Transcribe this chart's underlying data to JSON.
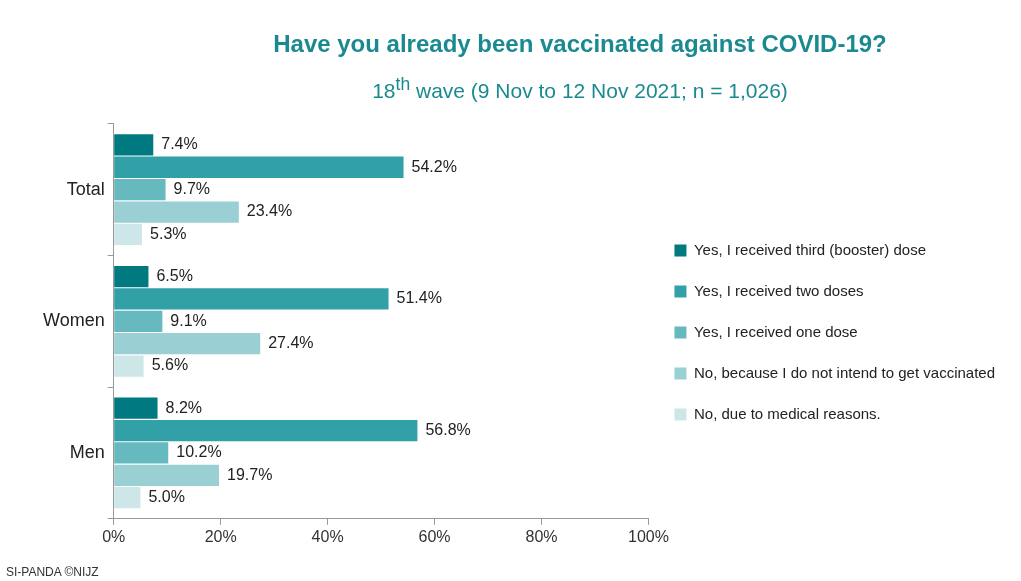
{
  "chart_data": {
    "type": "bar",
    "orientation": "horizontal",
    "title": "Have you already been vaccinated against COVID-19?",
    "subtitle": "18$^{th}$ wave (9 Nov to 12 Nov 2021; n = 1,026)",
    "categories": [
      "Total",
      "Women",
      "Men"
    ],
    "series": [
      {
        "name": "Yes, I received third (booster) dose",
        "color": "#007a80",
        "values": [
          7.4,
          6.5,
          8.2
        ],
        "value_labels": [
          "7.4%",
          "6.5%",
          "8.2%"
        ]
      },
      {
        "name": "Yes, I received two doses",
        "color": "#31a0a7",
        "values": [
          54.2,
          51.4,
          56.8
        ],
        "value_labels": [
          "54.2%",
          "51.4%",
          "56.8%"
        ]
      },
      {
        "name": "Yes, I received one dose",
        "color": "#66b9be",
        "values": [
          9.7,
          9.1,
          10.2
        ],
        "value_labels": [
          "9.7%",
          "9.1%",
          "10.2%"
        ]
      },
      {
        "name": "No, because I do not intend to get vaccinated",
        "color": "#9acfd3",
        "values": [
          23.4,
          27.4,
          19.7
        ],
        "value_labels": [
          "23.4%",
          "27.4%",
          "19.7%"
        ]
      },
      {
        "name": "No, due to medical reasons.",
        "color": "#cde7e9",
        "values": [
          5.3,
          5.6,
          5.0
        ],
        "value_labels": [
          "5.3%",
          "5.6%",
          "5.0%"
        ]
      }
    ],
    "xlim": [
      0,
      100
    ],
    "xticks": [
      {
        "value": 0,
        "label": "0%"
      },
      {
        "value": 20,
        "label": "20%"
      },
      {
        "value": 40,
        "label": "40%"
      },
      {
        "value": 60,
        "label": "60%"
      },
      {
        "value": 80,
        "label": "80%"
      },
      {
        "value": 100,
        "label": "100%"
      }
    ],
    "grid": false,
    "legend": "right",
    "annotations": [
      "SI-PANDA ©NIJZ"
    ]
  }
}
